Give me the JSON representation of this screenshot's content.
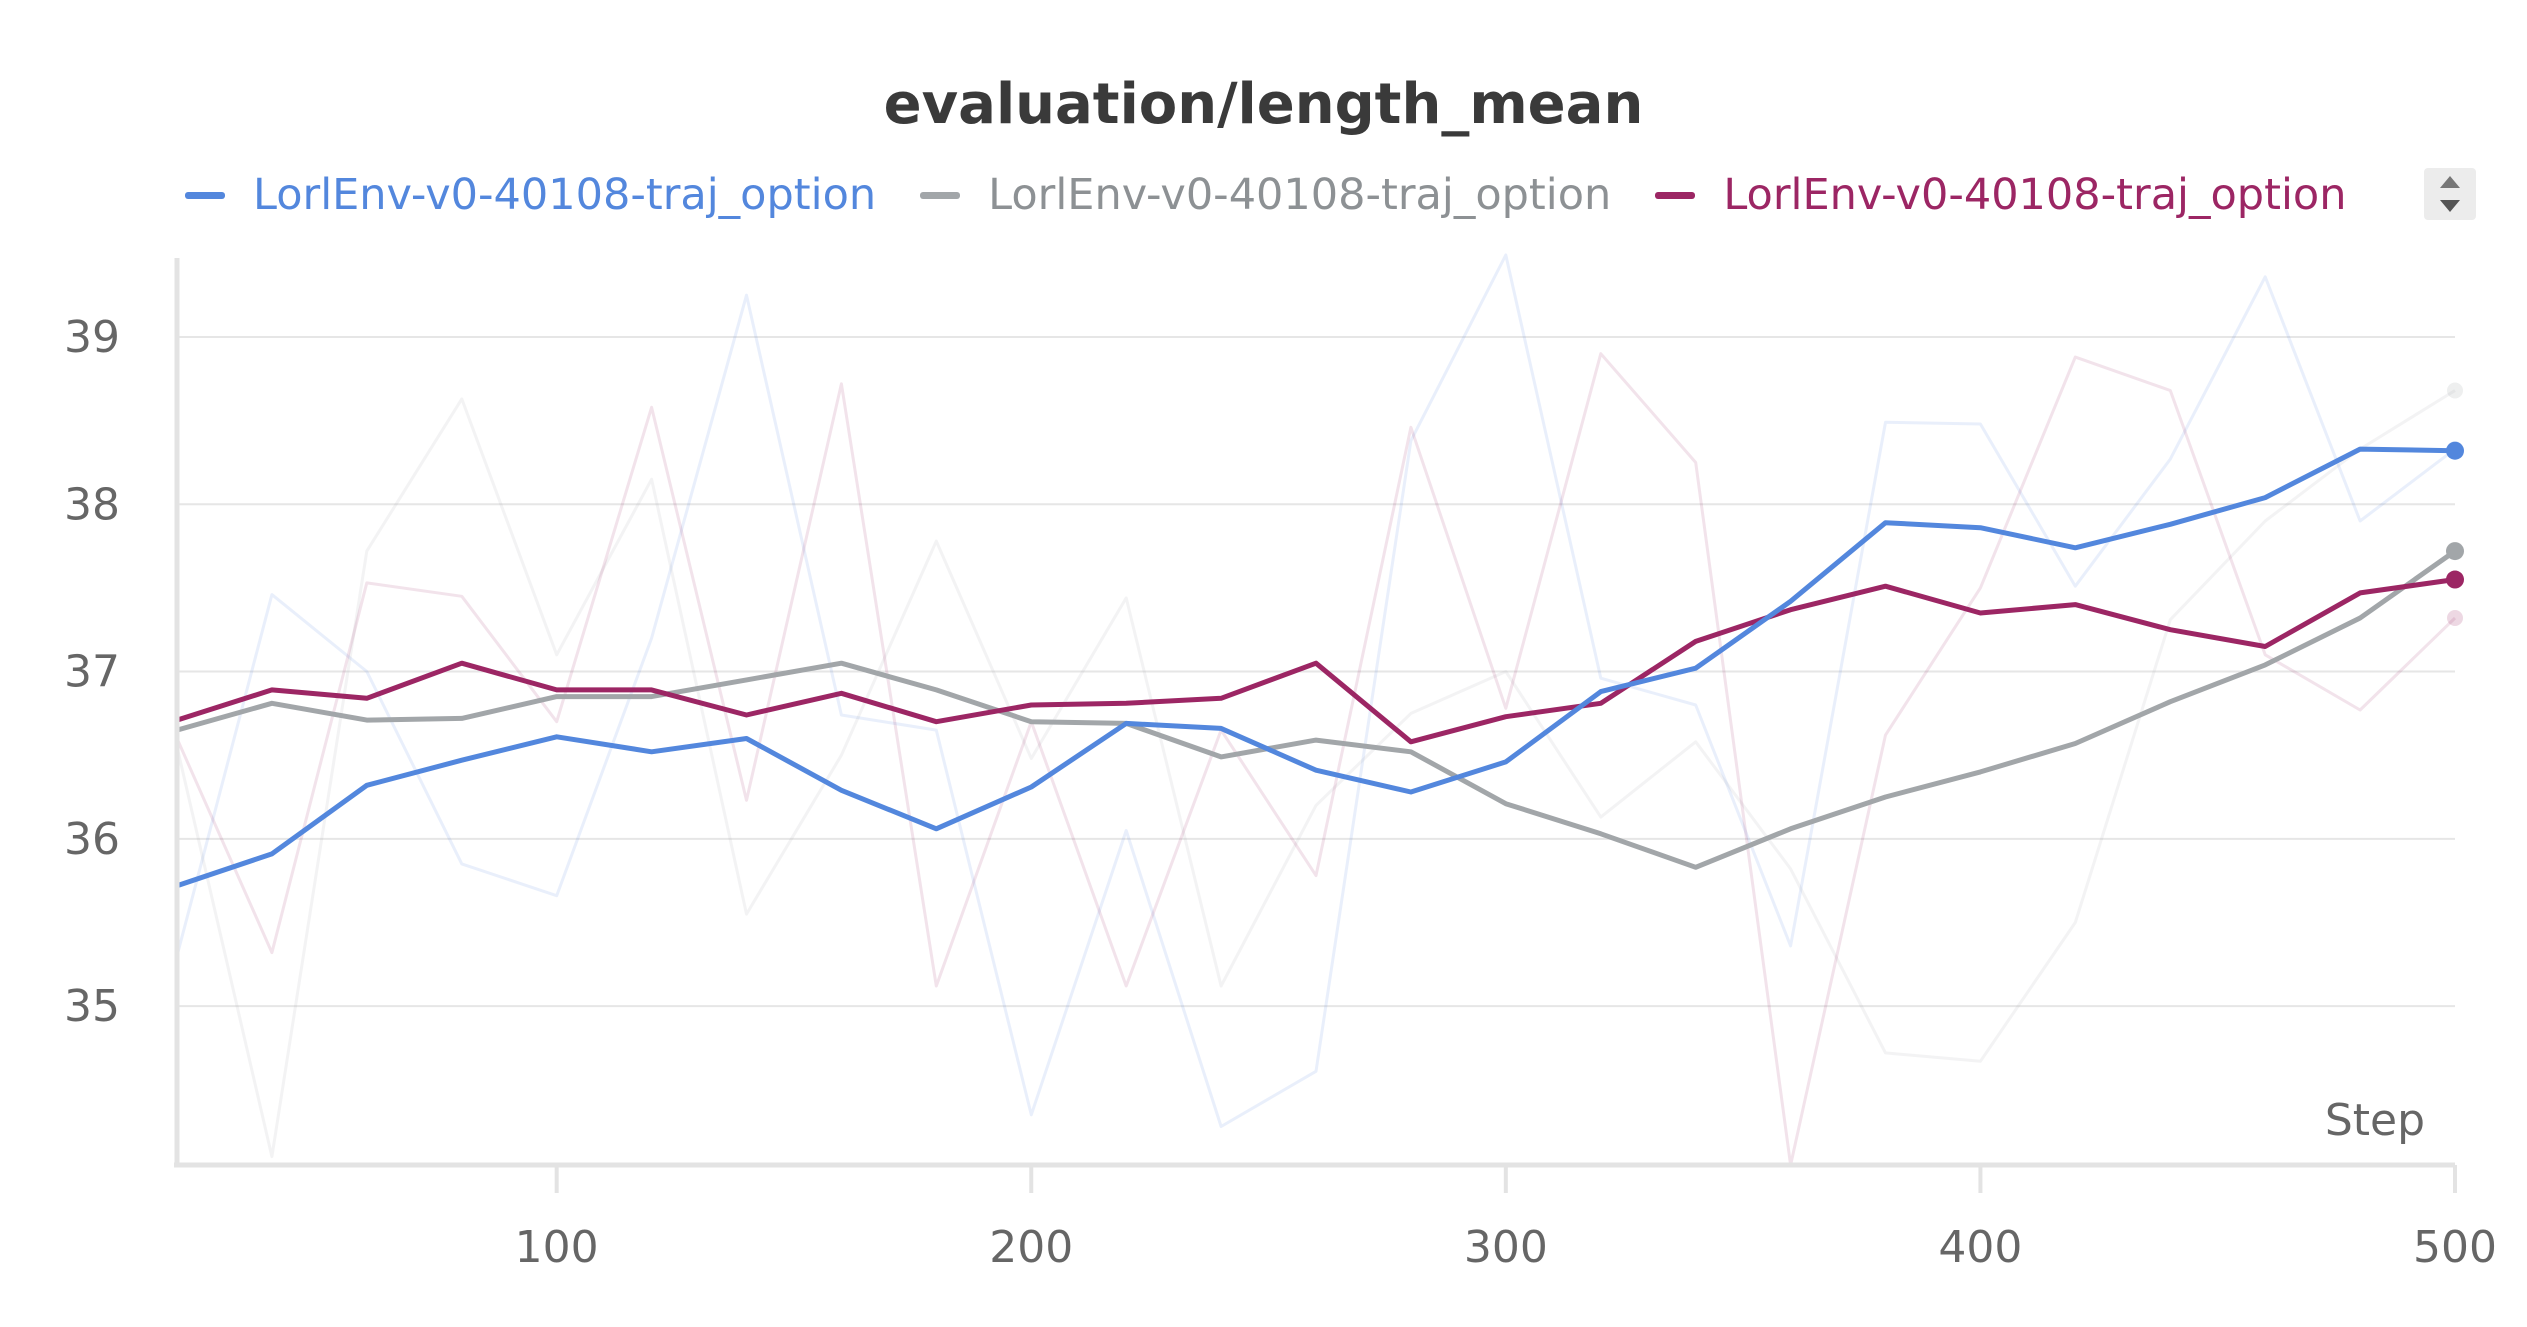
{
  "chart_data": {
    "type": "line",
    "title": "evaluation/length_mean",
    "xlabel": "Step",
    "ylabel": "",
    "xlim": [
      20,
      500
    ],
    "ylim": [
      34.05,
      39.55
    ],
    "xticks": [
      100,
      200,
      300,
      400,
      500
    ],
    "yticks": [
      35,
      36,
      37,
      38,
      39
    ],
    "grid": true,
    "legend_position": "top",
    "x": [
      20,
      40,
      60,
      80,
      100,
      120,
      140,
      160,
      180,
      200,
      220,
      240,
      260,
      280,
      300,
      320,
      340,
      360,
      380,
      400,
      420,
      440,
      460,
      480,
      500
    ],
    "series": [
      {
        "name": "LorlEnv-v0-40108-traj_option",
        "color": "#5387dd",
        "smoothed": [
          35.72,
          35.91,
          36.32,
          36.47,
          36.61,
          36.52,
          36.6,
          36.29,
          36.06,
          36.31,
          36.69,
          36.66,
          36.41,
          36.28,
          36.46,
          36.88,
          37.02,
          37.42,
          37.89,
          37.86,
          37.74,
          37.88,
          38.04,
          38.33,
          38.32
        ],
        "raw": [
          35.3,
          37.46,
          37.0,
          35.85,
          35.66,
          37.2,
          39.25,
          36.74,
          36.65,
          34.35,
          36.05,
          34.28,
          34.61,
          38.38,
          39.49,
          36.96,
          36.8,
          35.36,
          38.49,
          38.48,
          37.51,
          38.27,
          39.36,
          37.9,
          38.33
        ]
      },
      {
        "name": "LorlEnv-v0-40108-traj_option",
        "color": "#a2a6a9",
        "smoothed": [
          36.65,
          36.81,
          36.71,
          36.72,
          36.85,
          36.85,
          36.95,
          37.05,
          36.89,
          36.7,
          36.69,
          36.49,
          36.59,
          36.52,
          36.21,
          36.03,
          35.83,
          36.06,
          36.25,
          36.4,
          36.57,
          36.82,
          37.04,
          37.32,
          37.72
        ],
        "raw": [
          36.55,
          34.1,
          37.72,
          38.63,
          37.1,
          38.15,
          35.55,
          36.5,
          37.78,
          36.48,
          37.44,
          35.12,
          36.2,
          36.75,
          37.0,
          36.13,
          36.58,
          35.82,
          34.72,
          34.67,
          35.5,
          37.31,
          37.9,
          38.33,
          38.68
        ]
      },
      {
        "name": "LorlEnv-v0-40108-traj_option",
        "color": "#9c2664",
        "smoothed": [
          36.71,
          36.89,
          36.84,
          37.05,
          36.89,
          36.89,
          36.74,
          36.87,
          36.7,
          36.8,
          36.81,
          36.84,
          37.05,
          36.58,
          36.73,
          36.81,
          37.18,
          37.37,
          37.51,
          37.35,
          37.4,
          37.25,
          37.15,
          37.47,
          37.55
        ],
        "raw": [
          36.6,
          35.32,
          37.53,
          37.45,
          36.7,
          38.58,
          36.23,
          38.72,
          35.12,
          36.7,
          35.12,
          36.65,
          35.78,
          38.46,
          36.78,
          38.9,
          38.25,
          34.05,
          36.62,
          37.5,
          38.88,
          38.68,
          37.1,
          36.77,
          37.32
        ]
      }
    ]
  }
}
